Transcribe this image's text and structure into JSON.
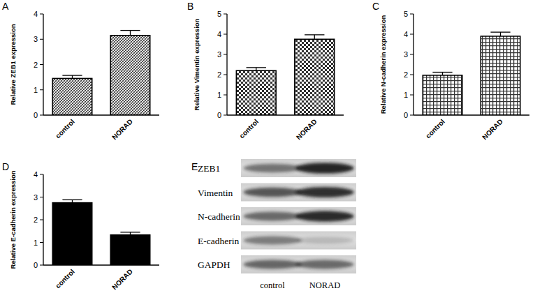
{
  "chart_data": [
    {
      "type": "bar",
      "title": "A",
      "y_label": "Relative ZEB1 expression",
      "categories": [
        "control",
        "NORAD"
      ],
      "values": [
        1.45,
        3.15
      ],
      "errors": [
        0.12,
        0.2
      ],
      "color": "#333333",
      "ylim": [
        0,
        4
      ],
      "yticks": [
        0,
        1,
        2,
        3,
        4
      ],
      "grid": false
    },
    {
      "type": "bar",
      "title": "B",
      "y_label": "Relative Vimentin expression",
      "categories": [
        "control",
        "NORAD"
      ],
      "values": [
        2.2,
        3.75
      ],
      "errors": [
        0.15,
        0.22
      ],
      "color": "#333333",
      "ylim": [
        0,
        5
      ],
      "yticks": [
        0,
        1,
        2,
        3,
        4,
        5
      ],
      "grid": false
    },
    {
      "type": "bar",
      "title": "C",
      "y_label": "Relative N-cadherin expression",
      "categories": [
        "control",
        "NORAD"
      ],
      "values": [
        1.97,
        3.9
      ],
      "errors": [
        0.15,
        0.2
      ],
      "color": "#333333",
      "ylim": [
        0,
        5
      ],
      "yticks": [
        0,
        1,
        2,
        3,
        4,
        5
      ],
      "grid": false
    },
    {
      "type": "bar",
      "title": "D",
      "y_label": "Relative E-cadherin expression",
      "categories": [
        "control",
        "NORAD"
      ],
      "values": [
        2.75,
        1.33
      ],
      "errors": [
        0.13,
        0.12
      ],
      "color": "#000000",
      "ylim": [
        0,
        4
      ],
      "yticks": [
        0,
        1,
        2,
        3,
        4
      ],
      "grid": false
    }
  ],
  "blot": {
    "panel": "E",
    "rows": [
      "ZEB1",
      "Vimentin",
      "N-cadherin",
      "E-cadherin",
      "GAPDH"
    ],
    "lanes": [
      "control",
      "NORAD"
    ]
  }
}
